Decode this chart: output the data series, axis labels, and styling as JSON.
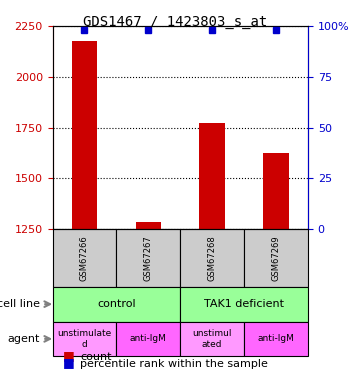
{
  "title": "GDS1467 / 1423803_s_at",
  "samples": [
    "GSM67266",
    "GSM67267",
    "GSM67268",
    "GSM67269"
  ],
  "counts": [
    2175,
    1285,
    1775,
    1625
  ],
  "percentiles": [
    98,
    98,
    98,
    98
  ],
  "ylim_left": [
    1250,
    2250
  ],
  "ylim_right": [
    0,
    100
  ],
  "left_ticks": [
    1250,
    1500,
    1750,
    2000,
    2250
  ],
  "right_ticks": [
    0,
    25,
    50,
    75,
    100
  ],
  "right_tick_labels": [
    "0",
    "25",
    "50",
    "75",
    "100%"
  ],
  "bar_color": "#cc0000",
  "dot_color": "#0000cc",
  "cell_line_labels": [
    "control",
    "TAK1 deficient"
  ],
  "cell_line_spans": [
    [
      0,
      2
    ],
    [
      2,
      4
    ]
  ],
  "cell_line_color": "#99ff99",
  "agent_labels": [
    "unstimulate\nd",
    "anti-IgM",
    "unstimul\nated",
    "anti-IgM"
  ],
  "agent_colors": [
    "#ff99ff",
    "#ff66ff",
    "#ff99ff",
    "#ff66ff"
  ],
  "sample_bg_color": "#cccccc",
  "legend_count_color": "#cc0000",
  "legend_pct_color": "#0000cc"
}
